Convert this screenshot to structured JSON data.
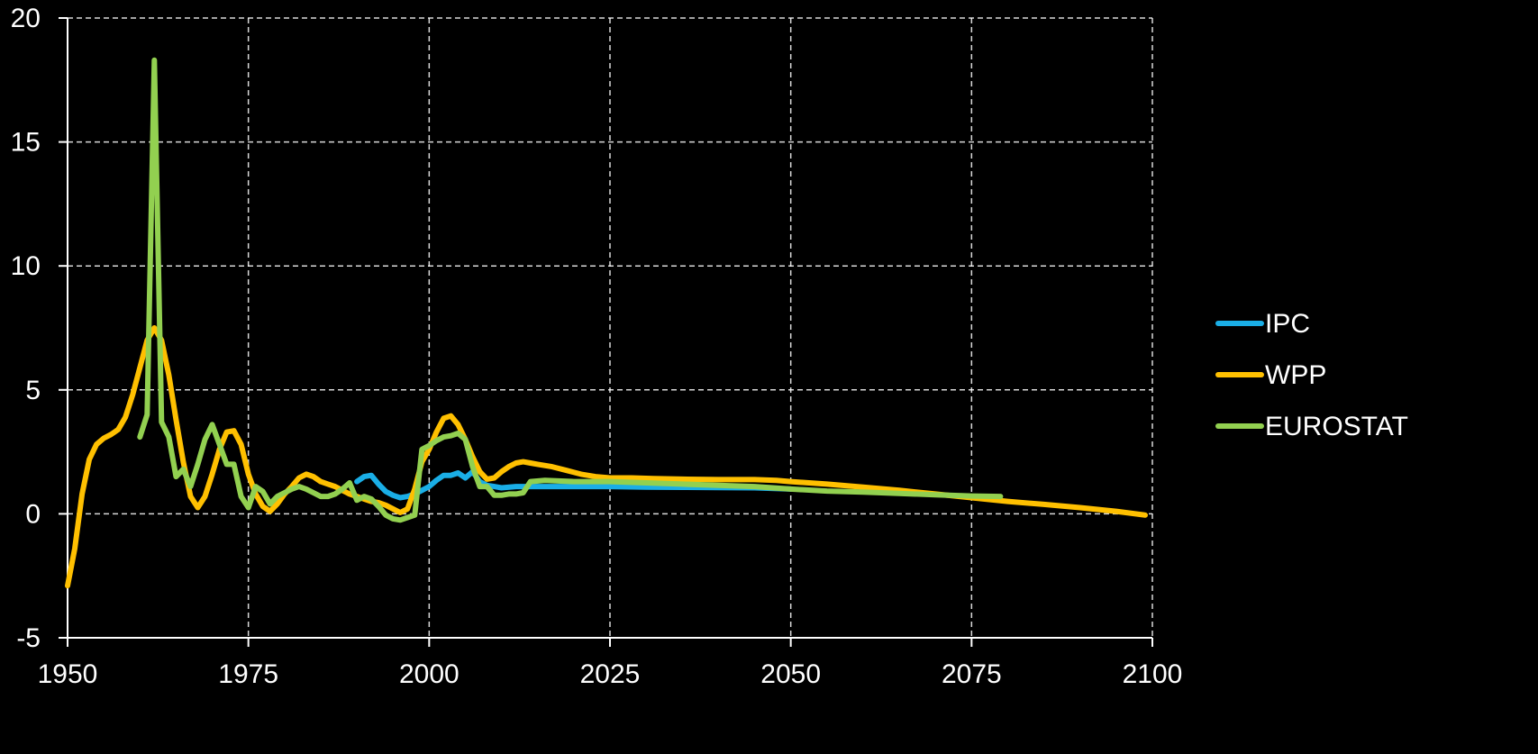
{
  "chart_data": {
    "type": "line",
    "title": "",
    "xlabel": "",
    "ylabel": "",
    "xlim": [
      1950,
      2100
    ],
    "ylim": [
      -5,
      20
    ],
    "x_ticks": [
      1950,
      1975,
      2000,
      2025,
      2050,
      2075,
      2100
    ],
    "y_ticks": [
      -5,
      0,
      5,
      10,
      15,
      20
    ],
    "x_tick_labels": [
      "1950",
      "1975",
      "2000",
      "2025",
      "2050",
      "2075",
      "2100"
    ],
    "y_tick_labels": [
      "-5",
      "0",
      "5",
      "10",
      "15",
      "20"
    ],
    "grid": true,
    "legend_position": "right",
    "series": [
      {
        "name": "IPC",
        "color": "#1AAEE6",
        "points": [
          [
            1990,
            1.3
          ],
          [
            1991,
            1.5
          ],
          [
            1992,
            1.55
          ],
          [
            1993,
            1.2
          ],
          [
            1994,
            0.9
          ],
          [
            1995,
            0.75
          ],
          [
            1996,
            0.65
          ],
          [
            1997,
            0.7
          ],
          [
            1998,
            0.8
          ],
          [
            1999,
            0.95
          ],
          [
            2000,
            1.1
          ],
          [
            2001,
            1.35
          ],
          [
            2002,
            1.55
          ],
          [
            2003,
            1.55
          ],
          [
            2004,
            1.65
          ],
          [
            2005,
            1.45
          ],
          [
            2006,
            1.7
          ],
          [
            2007,
            1.3
          ],
          [
            2008,
            1.15
          ],
          [
            2009,
            1.1
          ],
          [
            2010,
            1.05
          ],
          [
            2012,
            1.1
          ],
          [
            2015,
            1.1
          ],
          [
            2020,
            1.1
          ],
          [
            2025,
            1.1
          ],
          [
            2030,
            1.08
          ],
          [
            2035,
            1.07
          ],
          [
            2040,
            1.06
          ],
          [
            2045,
            1.05
          ],
          [
            2050,
            1.0
          ]
        ]
      },
      {
        "name": "WPP",
        "color": "#FFC000",
        "points": [
          [
            1950,
            -2.9
          ],
          [
            1951,
            -1.4
          ],
          [
            1952,
            0.8
          ],
          [
            1953,
            2.2
          ],
          [
            1954,
            2.8
          ],
          [
            1955,
            3.05
          ],
          [
            1956,
            3.2
          ],
          [
            1957,
            3.4
          ],
          [
            1958,
            3.9
          ],
          [
            1959,
            4.8
          ],
          [
            1960,
            5.9
          ],
          [
            1961,
            7.0
          ],
          [
            1962,
            7.5
          ],
          [
            1963,
            7.0
          ],
          [
            1964,
            5.6
          ],
          [
            1965,
            3.8
          ],
          [
            1966,
            2.1
          ],
          [
            1967,
            0.7
          ],
          [
            1968,
            0.25
          ],
          [
            1969,
            0.7
          ],
          [
            1970,
            1.6
          ],
          [
            1971,
            2.6
          ],
          [
            1972,
            3.3
          ],
          [
            1973,
            3.35
          ],
          [
            1974,
            2.8
          ],
          [
            1975,
            1.6
          ],
          [
            1976,
            0.8
          ],
          [
            1977,
            0.3
          ],
          [
            1978,
            0.1
          ],
          [
            1979,
            0.4
          ],
          [
            1980,
            0.8
          ],
          [
            1981,
            1.1
          ],
          [
            1982,
            1.45
          ],
          [
            1983,
            1.6
          ],
          [
            1984,
            1.5
          ],
          [
            1985,
            1.3
          ],
          [
            1986,
            1.2
          ],
          [
            1987,
            1.1
          ],
          [
            1988,
            0.95
          ],
          [
            1989,
            0.8
          ],
          [
            1990,
            0.7
          ],
          [
            1991,
            0.6
          ],
          [
            1992,
            0.5
          ],
          [
            1993,
            0.45
          ],
          [
            1994,
            0.35
          ],
          [
            1995,
            0.2
          ],
          [
            1996,
            0.05
          ],
          [
            1997,
            0.2
          ],
          [
            1998,
            1.0
          ],
          [
            1999,
            2.1
          ],
          [
            2000,
            2.6
          ],
          [
            2001,
            3.3
          ],
          [
            2002,
            3.85
          ],
          [
            2003,
            3.95
          ],
          [
            2004,
            3.6
          ],
          [
            2005,
            3.0
          ],
          [
            2006,
            2.3
          ],
          [
            2007,
            1.7
          ],
          [
            2008,
            1.4
          ],
          [
            2009,
            1.45
          ],
          [
            2010,
            1.7
          ],
          [
            2011,
            1.9
          ],
          [
            2012,
            2.05
          ],
          [
            2013,
            2.1
          ],
          [
            2014,
            2.05
          ],
          [
            2015,
            2.0
          ],
          [
            2017,
            1.9
          ],
          [
            2019,
            1.75
          ],
          [
            2021,
            1.6
          ],
          [
            2023,
            1.5
          ],
          [
            2025,
            1.45
          ],
          [
            2028,
            1.45
          ],
          [
            2031,
            1.42
          ],
          [
            2035,
            1.4
          ],
          [
            2040,
            1.38
          ],
          [
            2045,
            1.38
          ],
          [
            2048,
            1.35
          ],
          [
            2050,
            1.3
          ],
          [
            2055,
            1.2
          ],
          [
            2060,
            1.08
          ],
          [
            2065,
            0.95
          ],
          [
            2070,
            0.8
          ],
          [
            2075,
            0.65
          ],
          [
            2080,
            0.5
          ],
          [
            2085,
            0.38
          ],
          [
            2090,
            0.25
          ],
          [
            2095,
            0.1
          ],
          [
            2099,
            -0.05
          ]
        ]
      },
      {
        "name": "EUROSTAT",
        "color": "#92D050",
        "points": [
          [
            1960,
            3.1
          ],
          [
            1961,
            4.0
          ],
          [
            1962,
            18.3
          ],
          [
            1963,
            3.7
          ],
          [
            1964,
            3.1
          ],
          [
            1965,
            1.5
          ],
          [
            1966,
            1.8
          ],
          [
            1967,
            1.1
          ],
          [
            1968,
            2.0
          ],
          [
            1969,
            3.0
          ],
          [
            1970,
            3.6
          ],
          [
            1971,
            2.8
          ],
          [
            1972,
            2.0
          ],
          [
            1973,
            2.0
          ],
          [
            1974,
            0.7
          ],
          [
            1975,
            0.25
          ],
          [
            1976,
            1.1
          ],
          [
            1977,
            0.9
          ],
          [
            1978,
            0.4
          ],
          [
            1979,
            0.7
          ],
          [
            1980,
            0.85
          ],
          [
            1981,
            1.0
          ],
          [
            1982,
            1.1
          ],
          [
            1983,
            1.0
          ],
          [
            1984,
            0.85
          ],
          [
            1985,
            0.7
          ],
          [
            1986,
            0.7
          ],
          [
            1987,
            0.8
          ],
          [
            1988,
            1.0
          ],
          [
            1989,
            1.25
          ],
          [
            1990,
            0.55
          ],
          [
            1991,
            0.7
          ],
          [
            1992,
            0.6
          ],
          [
            1993,
            0.3
          ],
          [
            1994,
            -0.05
          ],
          [
            1995,
            -0.2
          ],
          [
            1996,
            -0.25
          ],
          [
            1997,
            -0.15
          ],
          [
            1998,
            -0.05
          ],
          [
            1999,
            2.6
          ],
          [
            2000,
            2.75
          ],
          [
            2001,
            2.95
          ],
          [
            2002,
            3.1
          ],
          [
            2003,
            3.15
          ],
          [
            2004,
            3.25
          ],
          [
            2005,
            3.0
          ],
          [
            2006,
            1.9
          ],
          [
            2007,
            1.1
          ],
          [
            2008,
            1.1
          ],
          [
            2009,
            0.75
          ],
          [
            2010,
            0.75
          ],
          [
            2011,
            0.8
          ],
          [
            2012,
            0.8
          ],
          [
            2013,
            0.85
          ],
          [
            2014,
            1.3
          ],
          [
            2016,
            1.35
          ],
          [
            2020,
            1.3
          ],
          [
            2025,
            1.3
          ],
          [
            2030,
            1.25
          ],
          [
            2035,
            1.2
          ],
          [
            2040,
            1.15
          ],
          [
            2045,
            1.1
          ],
          [
            2050,
            1.0
          ],
          [
            2055,
            0.92
          ],
          [
            2060,
            0.88
          ],
          [
            2065,
            0.82
          ],
          [
            2070,
            0.77
          ],
          [
            2075,
            0.72
          ],
          [
            2079,
            0.7
          ]
        ]
      }
    ]
  },
  "legend": {
    "items": [
      {
        "label": "IPC",
        "color": "#1AAEE6"
      },
      {
        "label": "WPP",
        "color": "#FFC000"
      },
      {
        "label": "EUROSTAT",
        "color": "#92D050"
      }
    ]
  }
}
